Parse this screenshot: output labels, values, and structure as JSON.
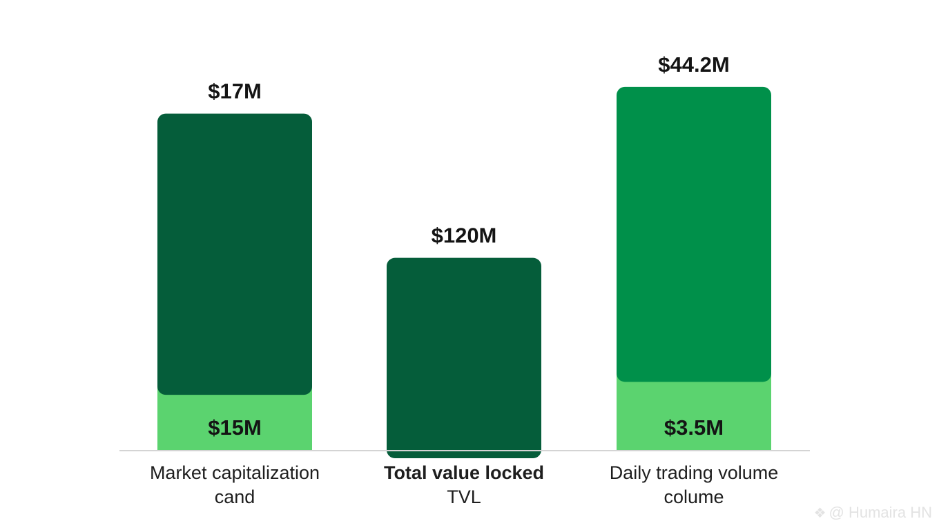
{
  "chart_data": {
    "type": "bar",
    "title": "",
    "xlabel": "",
    "ylabel": "",
    "grid": false,
    "ylim": [
      0,
      47
    ],
    "categories": [
      {
        "line1": "Market capitalization",
        "line2": "cand",
        "bold": false
      },
      {
        "line1": "Total value locked",
        "line2": "TVL",
        "bold": true
      },
      {
        "line1": "Daily trading volume",
        "line2": "colume",
        "bold": false
      }
    ],
    "bars": [
      {
        "top_label": "$17M",
        "inner_label": "$15M",
        "total": 41.5,
        "base": 6.8,
        "main_color": "#055d3a",
        "base_color": "#5bd36f"
      },
      {
        "top_label": "$120M",
        "inner_label": "",
        "total": 23.7,
        "base": 0,
        "main_color": "#055d3a",
        "base_color": "#5bd36f"
      },
      {
        "top_label": "$44.2M",
        "inner_label": "$3.5M",
        "total": 44.8,
        "base": 8.4,
        "main_color": "#00904a",
        "base_color": "#5bd36f"
      }
    ],
    "baseline_color": "#d4d4d4"
  },
  "watermark": {
    "icon": "diamond-logo-icon",
    "text": "@ Humaira HN"
  }
}
